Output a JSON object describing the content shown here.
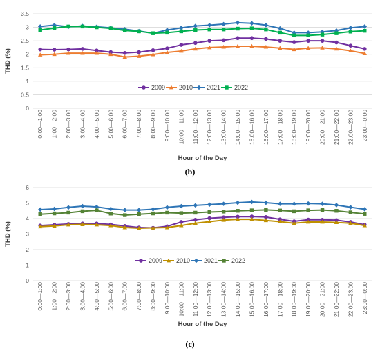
{
  "chart_data": [
    {
      "type": "line",
      "panel_label": "(b)",
      "xlabel": "Hour of the Day",
      "ylabel": "THD (%)",
      "ylim": [
        0,
        3.5
      ],
      "yticks": [
        "0",
        "0.5",
        "1",
        "1.5",
        "2",
        "2.5",
        "3",
        "3.5"
      ],
      "grid": true,
      "legend_position": "bottom-center",
      "categories": [
        "0:00—1:00",
        "1:00—2:00",
        "2:00—3:00",
        "3:00—4:00",
        "4:00—5:00",
        "5:00—6:00",
        "6:00—7:00",
        "7:00—8:00",
        "8:00—9:00",
        "9:00—10:00",
        "10:00—11:00",
        "11:00—12:00",
        "12:00—13:00",
        "13:00—14:00",
        "14:00—15:00",
        "15:00—16:00",
        "16:00—17:00",
        "17:00—18:00",
        "18:00—19:00",
        "19:00—20:00",
        "20:00—21:00",
        "21:00—22:00",
        "22:00—23:00",
        "23:00—0:00"
      ],
      "series": [
        {
          "name": "2009",
          "color": "#7030A0",
          "marker": "circle",
          "values": [
            2.18,
            2.17,
            2.18,
            2.2,
            2.14,
            2.08,
            2.05,
            2.08,
            2.15,
            2.22,
            2.35,
            2.42,
            2.5,
            2.52,
            2.6,
            2.6,
            2.57,
            2.5,
            2.45,
            2.5,
            2.5,
            2.44,
            2.32,
            2.2
          ]
        },
        {
          "name": "2010",
          "color": "#ED7D31",
          "marker": "triangle",
          "values": [
            1.98,
            2.0,
            2.04,
            2.04,
            2.04,
            2.0,
            1.9,
            1.93,
            1.99,
            2.07,
            2.12,
            2.2,
            2.25,
            2.27,
            2.3,
            2.3,
            2.27,
            2.23,
            2.18,
            2.23,
            2.24,
            2.2,
            2.13,
            2.03
          ]
        },
        {
          "name": "2021",
          "color": "#2E75B6",
          "marker": "diamond",
          "values": [
            3.03,
            3.08,
            3.02,
            3.05,
            3.02,
            2.98,
            2.93,
            2.86,
            2.78,
            2.9,
            2.98,
            3.05,
            3.08,
            3.12,
            3.17,
            3.15,
            3.08,
            2.96,
            2.8,
            2.8,
            2.83,
            2.88,
            2.98,
            3.03
          ]
        },
        {
          "name": "2022",
          "color": "#00B050",
          "marker": "square",
          "values": [
            2.9,
            2.97,
            3.03,
            3.03,
            3.0,
            2.96,
            2.88,
            2.85,
            2.78,
            2.8,
            2.85,
            2.9,
            2.92,
            2.92,
            2.95,
            2.96,
            2.92,
            2.8,
            2.7,
            2.7,
            2.73,
            2.78,
            2.84,
            2.87
          ]
        }
      ]
    },
    {
      "type": "line",
      "panel_label": "(c)",
      "xlabel": "Hour of the Day",
      "ylabel": "THD (%)",
      "ylim": [
        0,
        6
      ],
      "yticks": [
        "0",
        "1",
        "2",
        "3",
        "4",
        "5",
        "6"
      ],
      "grid": true,
      "legend_position": "bottom-center",
      "categories": [
        "0:00—1:00",
        "1:00—2:00",
        "2:00—3:00",
        "3:00—4:00",
        "4:00—5:00",
        "5:00—6:00",
        "6:00—7:00",
        "7:00—8:00",
        "8:00—9:00",
        "9:00—10:00",
        "10:00—11:00",
        "11:00—12:00",
        "12:00—13:00",
        "13:00—14:00",
        "14:00—15:00",
        "15:00—16:00",
        "16:00—17:00",
        "17:00—18:00",
        "18:00—19:00",
        "19:00—20:00",
        "20:00—21:00",
        "21:00—22:00",
        "22:00—23:00",
        "23:00—0:00"
      ],
      "series": [
        {
          "name": "2009",
          "color": "#7030A0",
          "marker": "circle",
          "values": [
            3.55,
            3.6,
            3.65,
            3.68,
            3.68,
            3.62,
            3.52,
            3.42,
            3.4,
            3.5,
            3.78,
            3.92,
            4.02,
            4.08,
            4.12,
            4.13,
            4.1,
            3.95,
            3.82,
            3.93,
            3.92,
            3.9,
            3.78,
            3.6
          ]
        },
        {
          "name": "2010",
          "color": "#BF9000",
          "marker": "triangle",
          "values": [
            3.48,
            3.52,
            3.6,
            3.62,
            3.6,
            3.55,
            3.42,
            3.38,
            3.4,
            3.42,
            3.55,
            3.7,
            3.8,
            3.9,
            3.95,
            3.95,
            3.88,
            3.8,
            3.7,
            3.78,
            3.78,
            3.75,
            3.7,
            3.55
          ]
        },
        {
          "name": "2021",
          "color": "#2E75B6",
          "marker": "diamond",
          "values": [
            4.58,
            4.62,
            4.72,
            4.8,
            4.75,
            4.62,
            4.55,
            4.55,
            4.6,
            4.72,
            4.8,
            4.85,
            4.9,
            4.95,
            5.02,
            5.07,
            5.02,
            4.95,
            4.95,
            4.97,
            4.95,
            4.87,
            4.73,
            4.6
          ]
        },
        {
          "name": "2022",
          "color": "#548235",
          "marker": "square",
          "values": [
            4.28,
            4.33,
            4.38,
            4.47,
            4.53,
            4.32,
            4.22,
            4.28,
            4.33,
            4.38,
            4.35,
            4.38,
            4.42,
            4.45,
            4.5,
            4.53,
            4.56,
            4.52,
            4.47,
            4.53,
            4.55,
            4.5,
            4.4,
            4.3
          ]
        }
      ]
    }
  ]
}
